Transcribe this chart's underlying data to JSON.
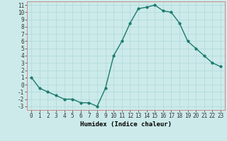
{
  "x": [
    0,
    1,
    2,
    3,
    4,
    5,
    6,
    7,
    8,
    9,
    10,
    11,
    12,
    13,
    14,
    15,
    16,
    17,
    18,
    19,
    20,
    21,
    22,
    23
  ],
  "y": [
    1.0,
    -0.5,
    -1.0,
    -1.5,
    -2.0,
    -2.0,
    -2.5,
    -2.5,
    -3.0,
    -0.5,
    4.0,
    6.0,
    8.5,
    10.5,
    10.7,
    11.0,
    10.2,
    10.0,
    8.5,
    6.0,
    5.0,
    4.0,
    3.0,
    2.5
  ],
  "line_color": "#1a7a6e",
  "bg_color": "#cceaea",
  "grid_color": "#b0d8d8",
  "xlabel": "Humidex (Indice chaleur)",
  "xlim": [
    -0.5,
    23.5
  ],
  "ylim": [
    -3.5,
    11.5
  ],
  "yticks": [
    -3,
    -2,
    -1,
    0,
    1,
    2,
    3,
    4,
    5,
    6,
    7,
    8,
    9,
    10,
    11
  ],
  "xticks": [
    0,
    1,
    2,
    3,
    4,
    5,
    6,
    7,
    8,
    9,
    10,
    11,
    12,
    13,
    14,
    15,
    16,
    17,
    18,
    19,
    20,
    21,
    22,
    23
  ],
  "tick_fontsize": 5.5,
  "label_fontsize": 6.5,
  "marker": "o",
  "marker_size": 2.0,
  "line_width": 1.0
}
